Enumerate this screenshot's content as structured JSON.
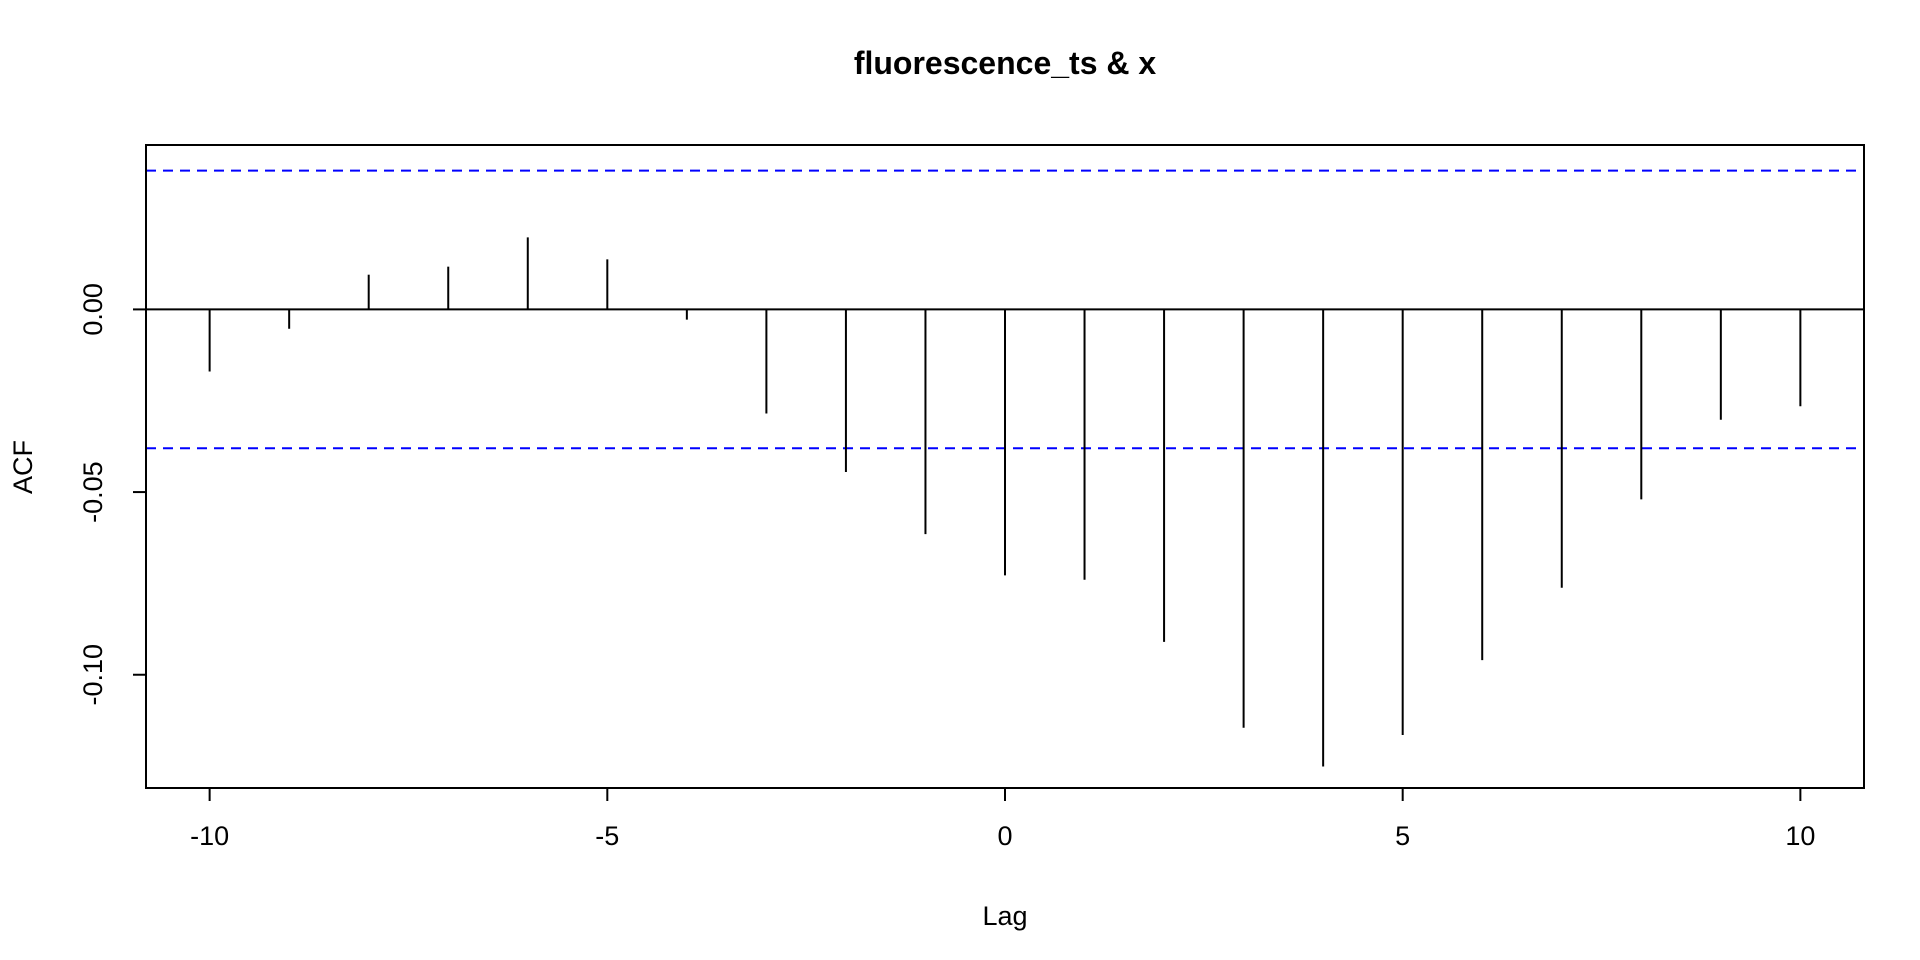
{
  "chart_data": {
    "type": "bar",
    "title": "fluorescence_ts & x",
    "xlabel": "Lag",
    "ylabel": "ACF",
    "xlim": [
      -10.8,
      10.8
    ],
    "ylim": [
      -0.131,
      0.045
    ],
    "x_ticks": [
      {
        "value": -10,
        "label": "-10"
      },
      {
        "value": -5,
        "label": "-5"
      },
      {
        "value": 0,
        "label": "0"
      },
      {
        "value": 5,
        "label": "5"
      },
      {
        "value": 10,
        "label": "10"
      }
    ],
    "y_ticks": [
      {
        "value": 0.0,
        "label": "0.00"
      },
      {
        "value": -0.05,
        "label": "-0.05"
      },
      {
        "value": -0.1,
        "label": "-0.10"
      }
    ],
    "confidence_bounds": [
      0.038,
      -0.038
    ],
    "colors": {
      "bars": "#000000",
      "bounds": "#0000ff",
      "zero_line": "#000000"
    },
    "grid": false,
    "lags": [
      -10,
      -9,
      -8,
      -7,
      -6,
      -5,
      -4,
      -3,
      -2,
      -1,
      0,
      1,
      2,
      3,
      4,
      5,
      6,
      7,
      8,
      9,
      10
    ],
    "values": [
      -0.017,
      -0.0053,
      0.0095,
      0.0117,
      0.0197,
      0.0137,
      -0.0028,
      -0.0285,
      -0.0445,
      -0.0615,
      -0.0728,
      -0.074,
      -0.091,
      -0.1145,
      -0.1251,
      -0.1165,
      -0.096,
      -0.0762,
      -0.052,
      -0.0302,
      -0.0265
    ]
  }
}
